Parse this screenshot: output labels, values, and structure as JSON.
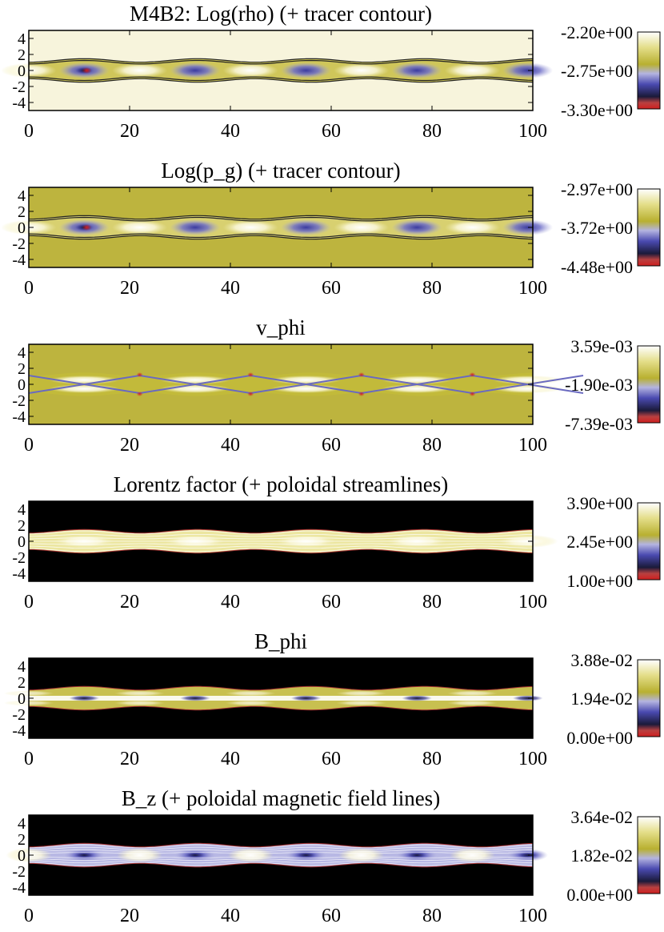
{
  "figure": {
    "panels": [
      {
        "title": "M4B2: Log(rho) (+ tracer contour)",
        "style": "rho",
        "colorbar": {
          "max": "-2.20e+00",
          "mid": "-2.75e+00",
          "min": "-3.30e+00"
        }
      },
      {
        "title": "Log(p_g) (+ tracer contour)",
        "style": "pg",
        "colorbar": {
          "max": "-2.97e+00",
          "mid": "-3.72e+00",
          "min": "-4.48e+00"
        }
      },
      {
        "title": "v_phi",
        "style": "vphi",
        "colorbar": {
          "max": "3.59e-03",
          "mid": "-1.90e-03",
          "min": "-7.39e-03"
        }
      },
      {
        "title": "Lorentz factor (+ poloidal streamlines)",
        "style": "lorentz",
        "colorbar": {
          "max": "3.90e+00",
          "mid": "2.45e+00",
          "min": "1.00e+00"
        }
      },
      {
        "title": "B_phi",
        "style": "bphi",
        "colorbar": {
          "max": "3.88e-02",
          "mid": "1.94e-02",
          "min": "0.00e+00"
        }
      },
      {
        "title": "B_z (+ poloidal magnetic field lines)",
        "style": "bz",
        "colorbar": {
          "max": "3.64e-02",
          "mid": "1.82e-02",
          "min": "0.00e+00"
        }
      }
    ],
    "x_ticks": [
      "0",
      "20",
      "40",
      "60",
      "80",
      "100"
    ],
    "y_ticks": [
      "4",
      "2",
      "0",
      "-2",
      "-4"
    ]
  },
  "chart_data": [
    {
      "type": "heatmap",
      "title": "M4B2: Log(rho) (+ tracer contour)",
      "xlim": [
        0,
        100
      ],
      "ylim": [
        -5,
        5
      ],
      "x_ticks": [
        0,
        20,
        40,
        60,
        80,
        100
      ],
      "y_ticks": [
        4,
        2,
        0,
        -2,
        -4
      ],
      "colorbar": [
        -3.3,
        -2.75,
        -2.2
      ]
    },
    {
      "type": "heatmap",
      "title": "Log(p_g) (+ tracer contour)",
      "xlim": [
        0,
        100
      ],
      "ylim": [
        -5,
        5
      ],
      "x_ticks": [
        0,
        20,
        40,
        60,
        80,
        100
      ],
      "y_ticks": [
        4,
        2,
        0,
        -2,
        -4
      ],
      "colorbar": [
        -4.48,
        -3.72,
        -2.97
      ]
    },
    {
      "type": "heatmap",
      "title": "v_phi",
      "xlim": [
        0,
        100
      ],
      "ylim": [
        -5,
        5
      ],
      "x_ticks": [
        0,
        20,
        40,
        60,
        80,
        100
      ],
      "y_ticks": [
        4,
        2,
        0,
        -2,
        -4
      ],
      "colorbar": [
        -0.00739,
        -0.0019,
        0.00359
      ]
    },
    {
      "type": "heatmap",
      "title": "Lorentz factor (+ poloidal streamlines)",
      "xlim": [
        0,
        100
      ],
      "ylim": [
        -5,
        5
      ],
      "x_ticks": [
        0,
        20,
        40,
        60,
        80,
        100
      ],
      "y_ticks": [
        4,
        2,
        0,
        -2,
        -4
      ],
      "colorbar": [
        1.0,
        2.45,
        3.9
      ]
    },
    {
      "type": "heatmap",
      "title": "B_phi",
      "xlim": [
        0,
        100
      ],
      "ylim": [
        -5,
        5
      ],
      "x_ticks": [
        0,
        20,
        40,
        60,
        80,
        100
      ],
      "y_ticks": [
        4,
        2,
        0,
        -2,
        -4
      ],
      "colorbar": [
        0.0,
        0.0194,
        0.0388
      ]
    },
    {
      "type": "heatmap",
      "title": "B_z (+ poloidal magnetic field lines)",
      "xlim": [
        0,
        100
      ],
      "ylim": [
        -5,
        5
      ],
      "x_ticks": [
        0,
        20,
        40,
        60,
        80,
        100
      ],
      "y_ticks": [
        4,
        2,
        0,
        -2,
        -4
      ],
      "colorbar": [
        0.0,
        0.0182,
        0.0364
      ]
    }
  ]
}
